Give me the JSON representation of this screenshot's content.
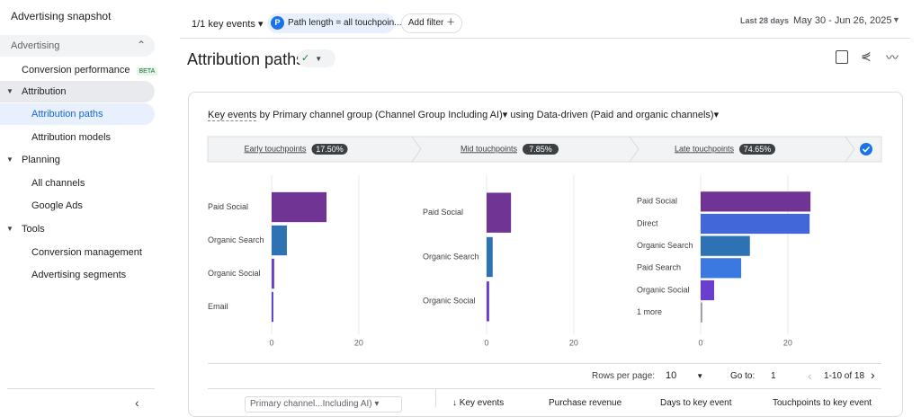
{
  "sidebar": {
    "title": "Advertising snapshot",
    "section": "Advertising",
    "nav": [
      {
        "label": "Conversion performance",
        "badge": "BETA"
      },
      {
        "label": "Attribution",
        "children": [
          "Attribution paths",
          "Attribution models"
        ]
      },
      {
        "label": "Planning",
        "children": [
          "All channels",
          "Google Ads"
        ]
      },
      {
        "label": "Tools",
        "children": [
          "Conversion management",
          "Advertising segments"
        ]
      }
    ]
  },
  "toolbar": {
    "key_events": "1/1 key events",
    "filter_icon": "P",
    "filter": "Path length = all touchpoin...",
    "add_filter": "Add filter",
    "date_label": "Last 28 days",
    "date_range": "May 30 - Jun 26, 2025"
  },
  "header": {
    "title": "Attribution paths"
  },
  "card": {
    "metric": "Key events",
    "by": "by Primary channel group (Channel Group Including AI)",
    "model": "using Data-driven (Paid and organic channels)",
    "stages": [
      {
        "label": "Early touchpoints",
        "badge": "17.50%"
      },
      {
        "label": "Mid touchpoints",
        "badge": "7.85%"
      },
      {
        "label": "Late touchpoints",
        "badge": "74.65%"
      }
    ],
    "charts": [
      {
        "type": "bar",
        "orientation": "horizontal",
        "categories": [
          "Paid Social",
          "Organic Search",
          "Organic Social",
          "Email"
        ],
        "values": [
          12.6,
          3.5,
          0.6,
          0.4
        ],
        "colors": [
          "#6f3494",
          "#2d73b3",
          "#6a3fcf",
          "#5b3fd4"
        ],
        "xlim": [
          0,
          26
        ],
        "xticks": [
          0,
          20
        ],
        "grid": true
      },
      {
        "type": "bar",
        "orientation": "horizontal",
        "categories": [
          "Paid Social",
          "Organic Search",
          "Organic Social"
        ],
        "values": [
          5.6,
          1.4,
          0.6
        ],
        "colors": [
          "#6f3494",
          "#2d73b3",
          "#6a3fcf"
        ],
        "xlim": [
          0,
          26
        ],
        "xticks": [
          0,
          20
        ],
        "grid": true
      },
      {
        "type": "bar",
        "orientation": "horizontal",
        "categories": [
          "Paid Social",
          "Direct",
          "Organic Search",
          "Paid Search",
          "Organic Social",
          "1 more"
        ],
        "values": [
          25.2,
          25.0,
          11.3,
          9.3,
          3.1,
          0.4
        ],
        "colors": [
          "#6f3494",
          "#4267d9",
          "#2d73b3",
          "#3b78e0",
          "#6a3fcf",
          "#9aa0a6"
        ],
        "xlim": [
          0,
          26
        ],
        "xticks": [
          0,
          20
        ],
        "grid": true
      }
    ],
    "pagination": {
      "rows_label": "Rows per page:",
      "rows": "10",
      "goto_label": "Go to:",
      "goto": "1",
      "range": "1-10 of 18"
    },
    "table_headers": [
      "Primary channel...Including AI)",
      "Key events",
      "Purchase revenue",
      "Days to key event",
      "Touchpoints to key event"
    ]
  }
}
